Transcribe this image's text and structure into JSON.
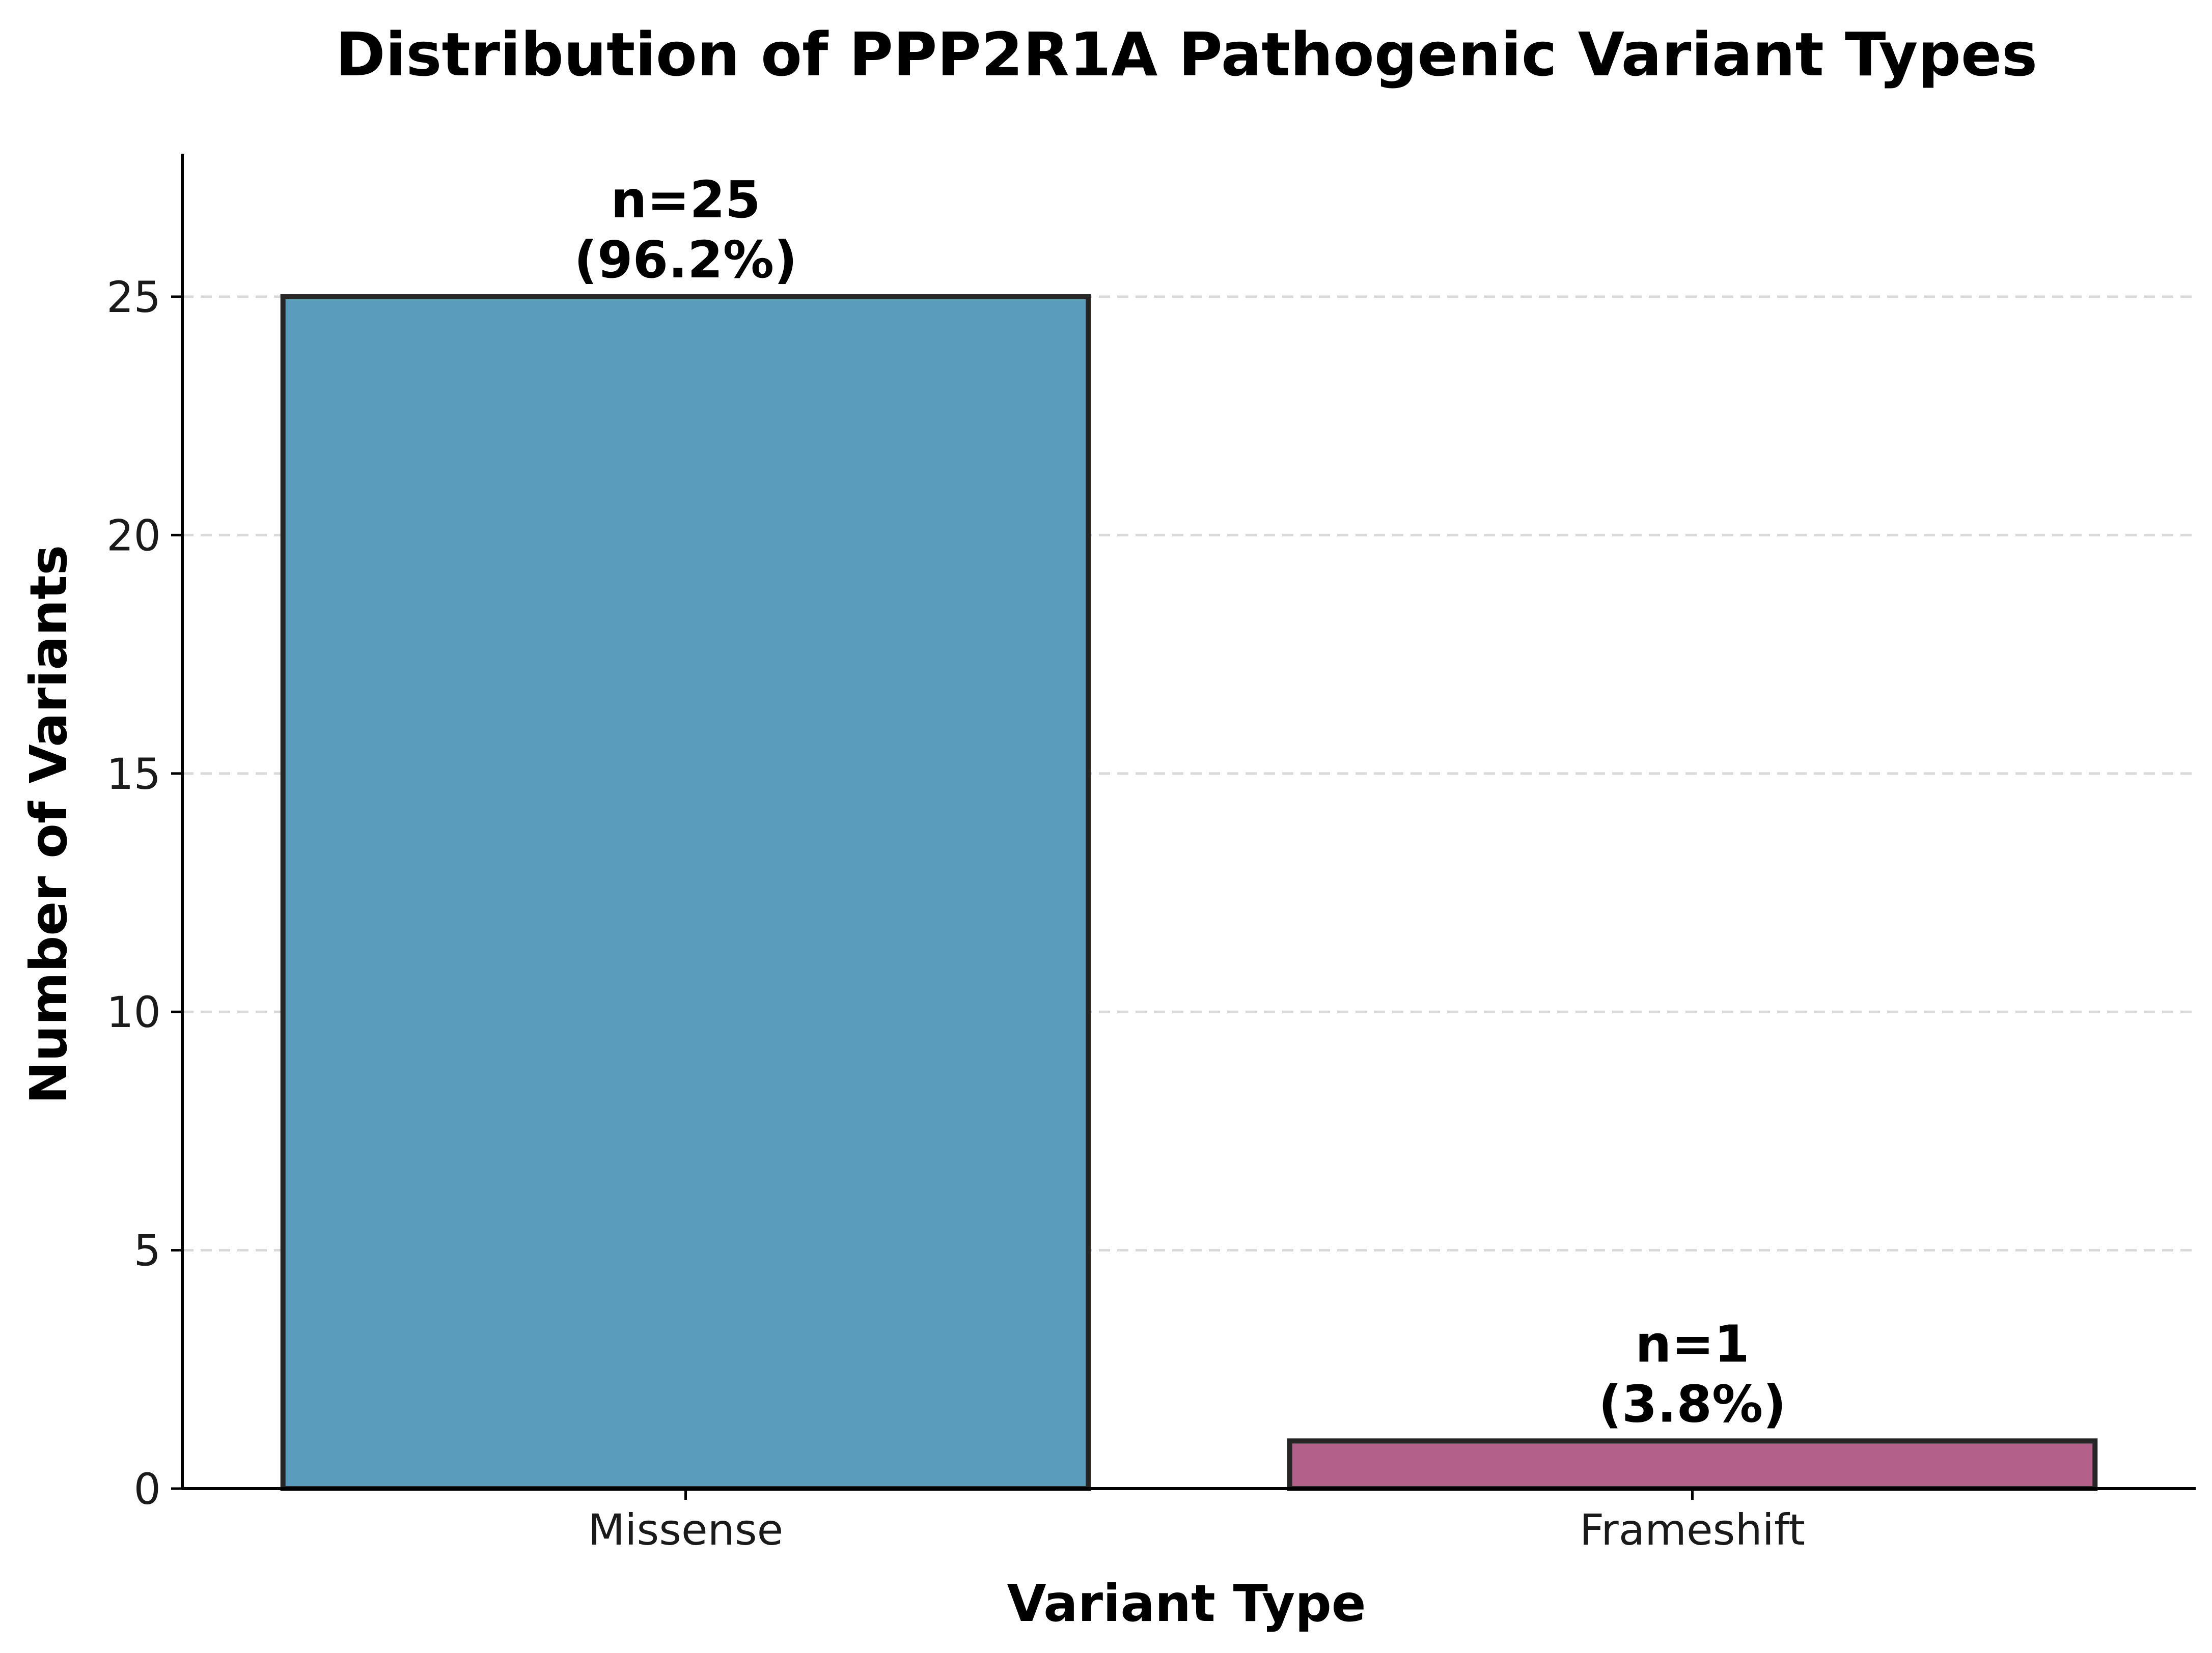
{
  "chart_data": {
    "type": "bar",
    "title": "Distribution of PPP2R1A Pathogenic Variant Types",
    "xlabel": "Variant Type",
    "ylabel": "Number of Variants",
    "categories": [
      "Missense",
      "Frameshift"
    ],
    "values": [
      25,
      1
    ],
    "label_lines": [
      [
        "n=25",
        "(96.2%)"
      ],
      [
        "n=1",
        "(3.8%)"
      ]
    ],
    "colors": [
      "#5a9cbc",
      "#b3608b"
    ],
    "edge_color": "#262626",
    "ylim": [
      0,
      28
    ],
    "yticks": [
      0,
      5,
      10,
      15,
      20,
      25
    ],
    "ytick_labels": [
      "0",
      "5",
      "10",
      "15",
      "20",
      "25"
    ],
    "grid": "y-dashed",
    "legend": "none"
  }
}
